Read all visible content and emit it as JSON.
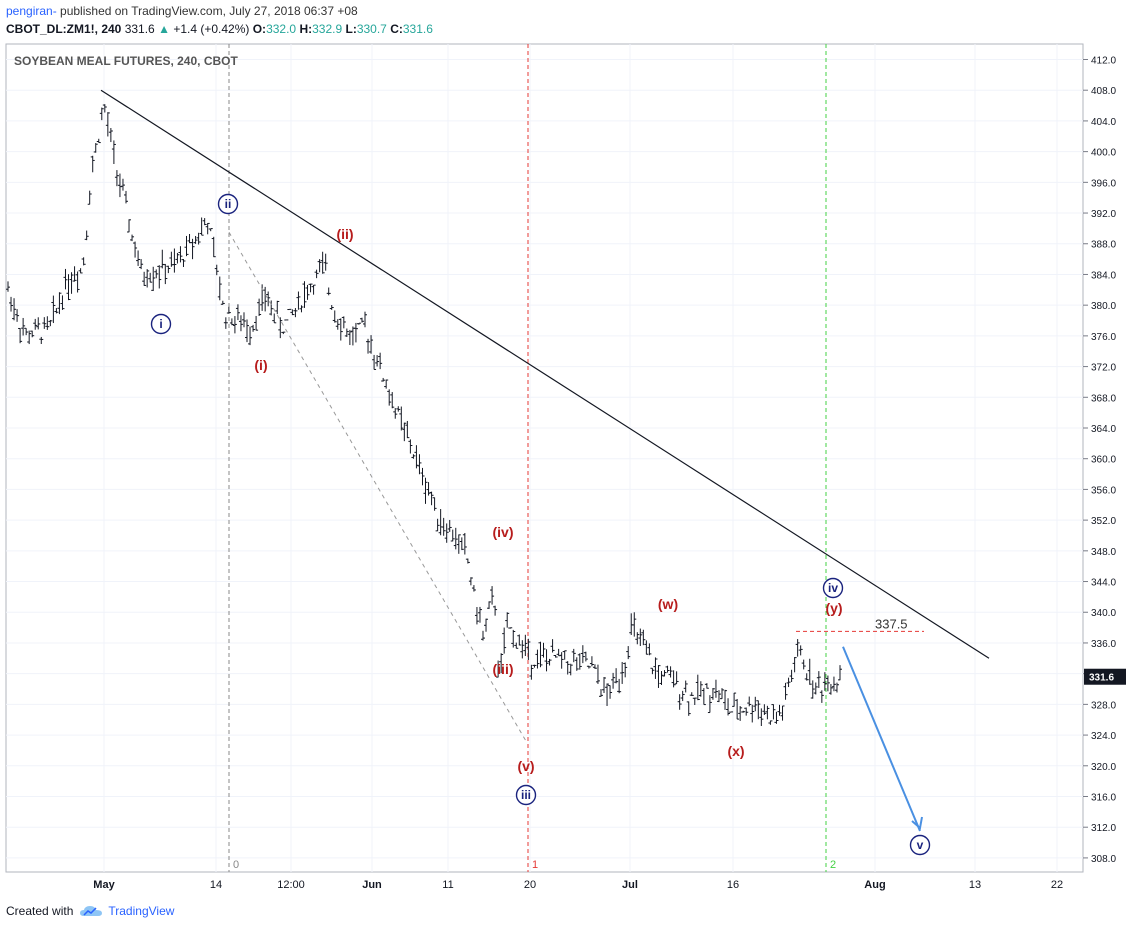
{
  "header": {
    "user": "pengiran-",
    "published": " published on TradingView.com, July 27, 2018 06:37 +08",
    "symbol": "CBOT_DL:ZM1!, 240",
    "last": "331.6",
    "change": "+1.4 (+0.42%)",
    "o_label": "O:",
    "o": "332.0",
    "h_label": "H:",
    "h": "332.9",
    "l_label": "L:",
    "l": "330.7",
    "c_label": "C:",
    "c": "331.6"
  },
  "footer": {
    "created": "Created with",
    "brand": "TradingView"
  },
  "colors": {
    "bar": "#131722",
    "wave_red": "#b71c1c",
    "wave_blue": "#1a237e",
    "arrow": "#4a90e2",
    "vline_red": "#e53935",
    "vline_green": "#43d143"
  },
  "chart_data": {
    "type": "ohlc",
    "title": "SOYBEAN MEAL FUTURES, 240, CBOT",
    "ylim": [
      306,
      414
    ],
    "y_ticks": [
      "412.0",
      "408.0",
      "404.0",
      "400.0",
      "396.0",
      "392.0",
      "388.0",
      "384.0",
      "380.0",
      "376.0",
      "372.0",
      "368.0",
      "364.0",
      "360.0",
      "356.0",
      "352.0",
      "348.0",
      "344.0",
      "340.0",
      "336.0",
      "332.0",
      "328.0",
      "324.0",
      "320.0",
      "316.0",
      "312.0",
      "308.0"
    ],
    "x_labels": [
      "May",
      "14",
      "12:00",
      "Jun",
      "11",
      "20",
      "Jul",
      "16",
      "Aug",
      "13",
      "22"
    ],
    "last_price_label": "331.6",
    "price_path": [
      [
        0,
        382
      ],
      [
        0.02,
        376
      ],
      [
        0.05,
        377
      ],
      [
        0.07,
        383
      ],
      [
        0.09,
        385
      ],
      [
        0.1,
        397
      ],
      [
        0.115,
        406
      ],
      [
        0.13,
        398
      ],
      [
        0.16,
        384
      ],
      [
        0.2,
        385
      ],
      [
        0.24,
        391
      ],
      [
        0.26,
        379
      ],
      [
        0.29,
        377
      ],
      [
        0.31,
        381
      ],
      [
        0.33,
        377
      ],
      [
        0.36,
        382
      ],
      [
        0.38,
        385
      ],
      [
        0.39,
        380
      ],
      [
        0.41,
        376
      ],
      [
        0.43,
        377
      ],
      [
        0.46,
        368
      ],
      [
        0.49,
        360
      ],
      [
        0.52,
        352
      ],
      [
        0.55,
        348
      ],
      [
        0.57,
        337
      ],
      [
        0.585,
        342
      ],
      [
        0.59,
        331
      ],
      [
        0.6,
        338
      ],
      [
        0.63,
        334
      ],
      [
        0.66,
        334
      ],
      [
        0.7,
        333
      ],
      [
        0.72,
        329
      ],
      [
        0.74,
        333
      ],
      [
        0.75,
        338
      ],
      [
        0.78,
        332
      ],
      [
        0.8,
        331
      ],
      [
        0.82,
        329
      ],
      [
        0.85,
        330
      ],
      [
        0.87,
        327
      ],
      [
        0.9,
        328
      ],
      [
        0.92,
        326
      ],
      [
        0.93,
        327
      ],
      [
        0.95,
        335
      ],
      [
        0.97,
        330
      ],
      [
        1,
        331.6
      ]
    ],
    "trendline": {
      "start_date": "May 1",
      "start": 408,
      "end_date": "Aug 13",
      "end": 334
    },
    "support_dashed": {
      "from": "ii",
      "to": "(v)"
    },
    "level_label": "337.5",
    "vlines": [
      {
        "label": "0",
        "color": "grey"
      },
      {
        "label": "1",
        "color": "red"
      },
      {
        "label": "2",
        "color": "green"
      }
    ],
    "wave_labels_blue": [
      "i",
      "ii",
      "iii",
      "iv",
      "v"
    ],
    "wave_labels_red": [
      "(i)",
      "(ii)",
      "(iii)",
      "(iv)",
      "(v)",
      "(w)",
      "(x)",
      "(y)"
    ]
  }
}
